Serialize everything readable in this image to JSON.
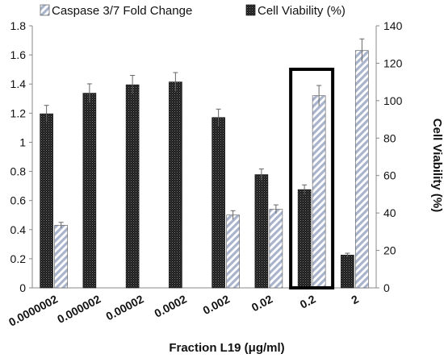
{
  "chart_data": {
    "type": "bar",
    "categories": [
      "0.0000002",
      "0.000002",
      "0.00002",
      "0.0002",
      "0.002",
      "0.02",
      "0.2",
      "2"
    ],
    "xlabel": "Fraction L19 (μg/ml)",
    "ylabel_left": "",
    "ylabel_right": "Cell Viability (%)",
    "ylim_left": [
      0,
      1.8
    ],
    "ylim_right": [
      0,
      140
    ],
    "yticks_left": [
      "0",
      "0.2",
      "0.4",
      "0.6",
      "0.8",
      "1",
      "1.2",
      "1.4",
      "1.6",
      "1.8"
    ],
    "yticks_right": [
      "0",
      "20",
      "40",
      "60",
      "80",
      "100",
      "120",
      "140"
    ],
    "legend_position": "top",
    "highlight_box_category": "0.2",
    "series": [
      {
        "name": "Cell Viability (%)",
        "axis": "right",
        "pattern": "dotted-dark",
        "color": "#1a1a1a",
        "values": [
          93,
          104,
          108.5,
          110,
          91,
          60.5,
          52.5,
          17.5
        ],
        "errors": [
          4.5,
          5,
          5,
          5,
          4.5,
          3,
          2.5,
          1
        ]
      },
      {
        "name": "Caspase 3/7 Fold Change",
        "axis": "left",
        "pattern": "hatched",
        "color": "#b8c2d6",
        "values": [
          0.43,
          null,
          null,
          null,
          0.5,
          0.54,
          1.32,
          1.63
        ],
        "errors": [
          0.02,
          null,
          null,
          null,
          0.03,
          0.03,
          0.07,
          0.08
        ]
      }
    ]
  }
}
